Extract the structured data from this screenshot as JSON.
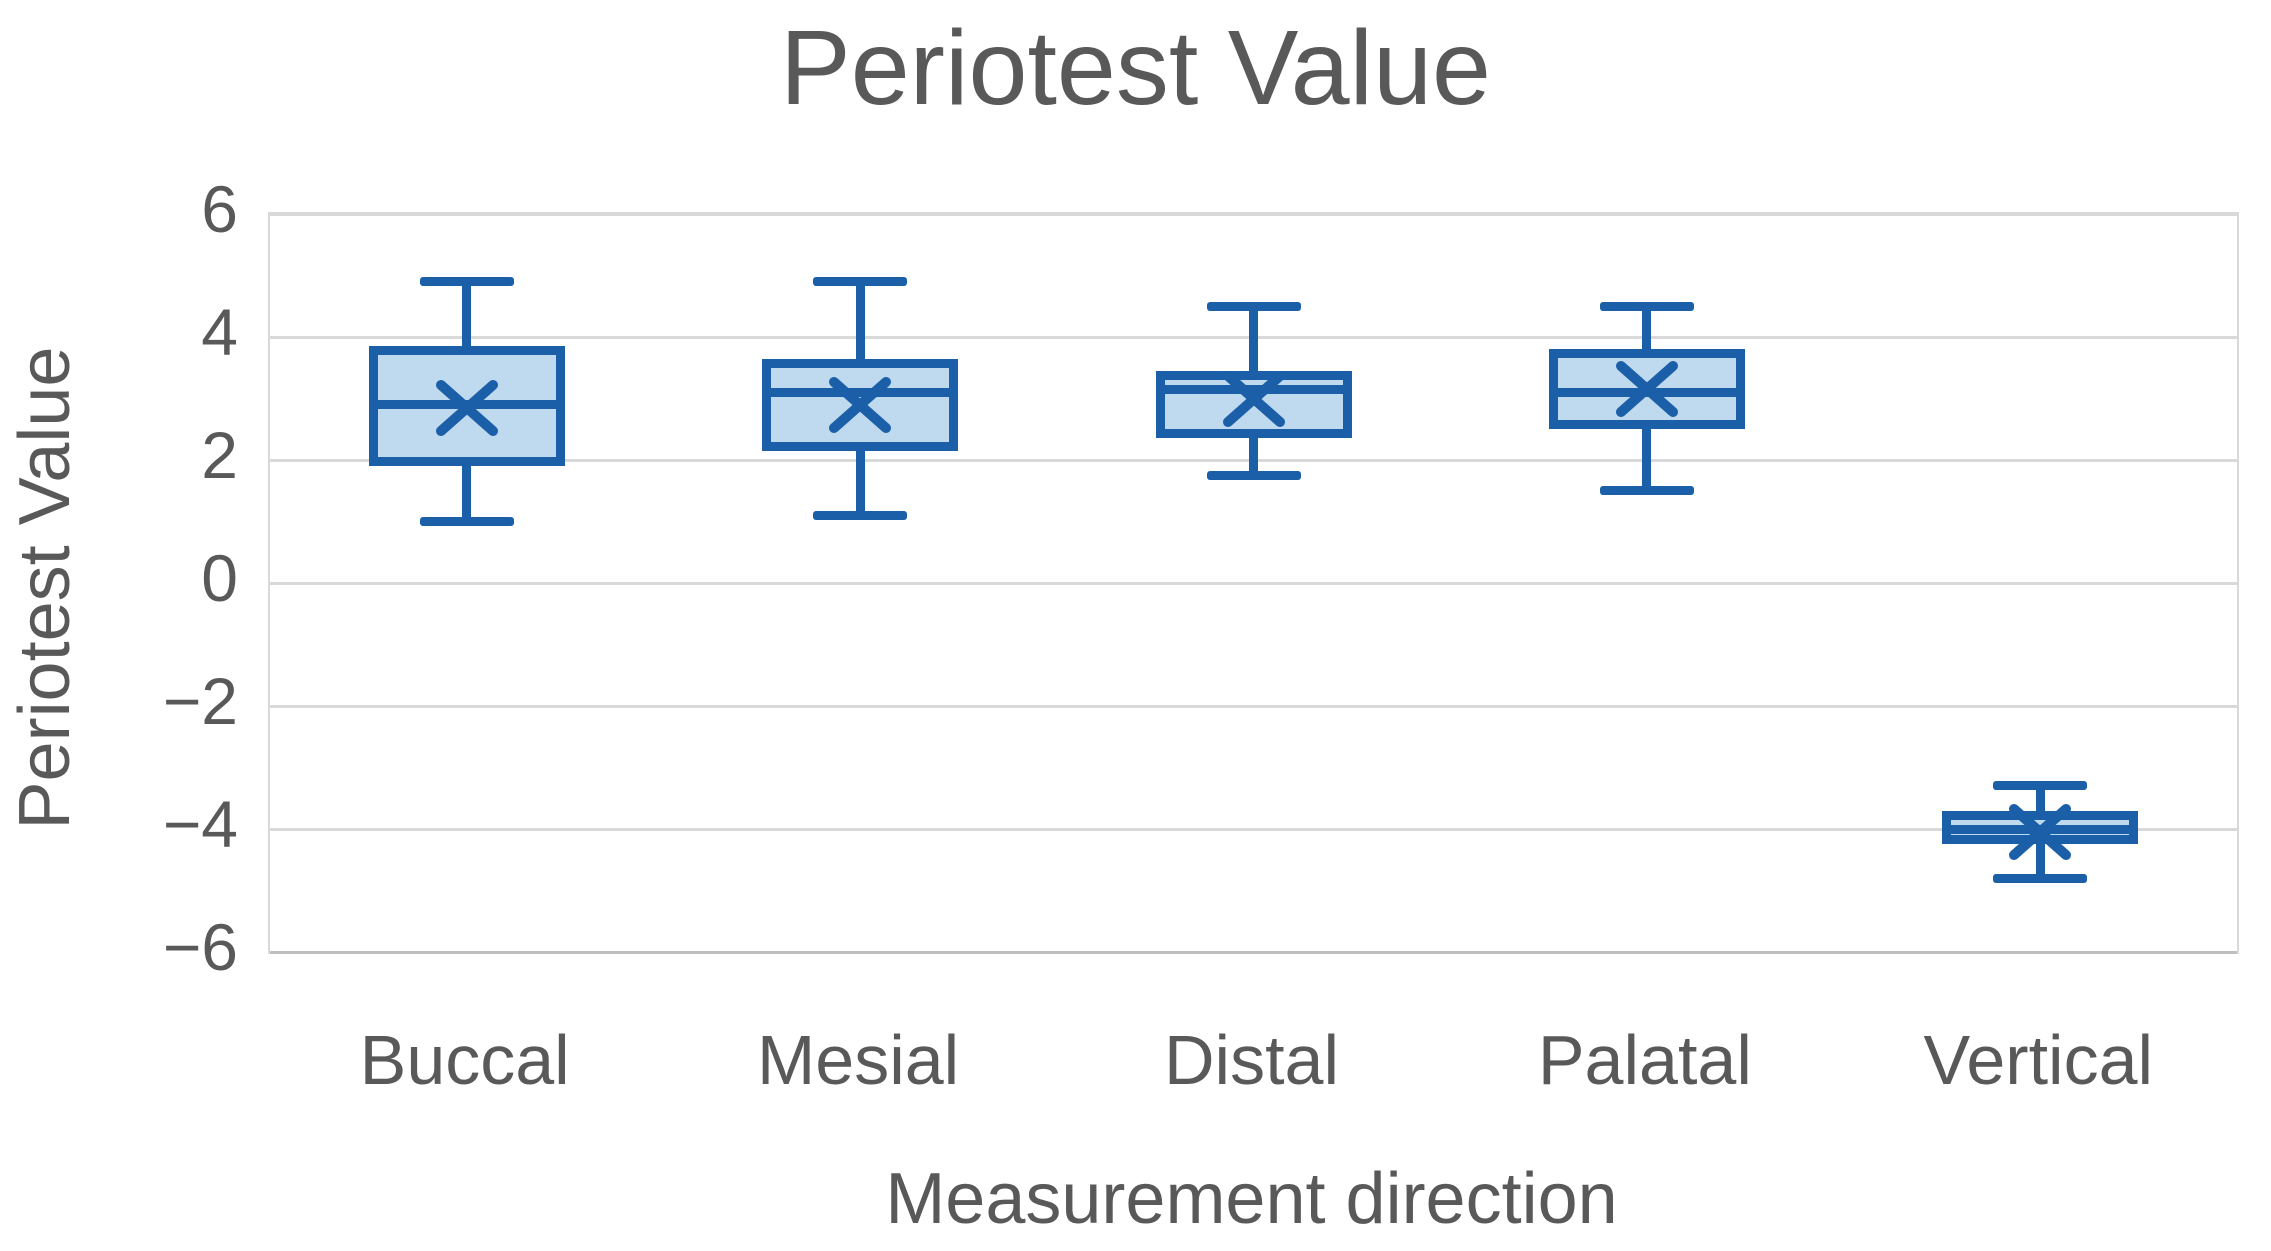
{
  "chart_data": {
    "type": "boxplot",
    "title": "Periotest Value",
    "xlabel": "Measurement direction",
    "ylabel": "Periotest Value",
    "categories": [
      "Buccal",
      "Mesial",
      "Distal",
      "Palatal",
      "Vertical"
    ],
    "ylim": [
      -6,
      6
    ],
    "grid": "horizontal-major",
    "legend": "none",
    "yticks": [
      {
        "label": "6",
        "value": 6
      },
      {
        "label": "4",
        "value": 4
      },
      {
        "label": "2",
        "value": 2
      },
      {
        "label": "0",
        "value": 0
      },
      {
        "label": "−2",
        "value": -2
      },
      {
        "label": "−4",
        "value": -4
      },
      {
        "label": "−6",
        "value": -6
      }
    ],
    "series": [
      {
        "name": "Buccal",
        "min": 1.0,
        "q1": 1.9,
        "median": 2.9,
        "q3": 3.85,
        "max": 4.9,
        "mean": 2.85
      },
      {
        "name": "Mesial",
        "min": 1.1,
        "q1": 2.15,
        "median": 3.1,
        "q3": 3.65,
        "max": 4.9,
        "mean": 2.9
      },
      {
        "name": "Distal",
        "min": 1.75,
        "q1": 2.35,
        "median": 3.15,
        "q3": 3.45,
        "max": 4.5,
        "mean": 3.0
      },
      {
        "name": "Palatal",
        "min": 1.5,
        "q1": 2.5,
        "median": 3.1,
        "q3": 3.8,
        "max": 4.5,
        "mean": 3.15
      },
      {
        "name": "Vertical",
        "min": -4.8,
        "q1": -4.25,
        "median": -4.0,
        "q3": -3.7,
        "max": -3.3,
        "mean": -4.05
      }
    ],
    "colors": {
      "box_fill": "#BFD9EE",
      "box_border": "#1A5FA8",
      "gridline": "#D9D9D9",
      "axis_line": "#BFBFBF",
      "text": "#595959",
      "background": "#FFFFFF"
    }
  }
}
